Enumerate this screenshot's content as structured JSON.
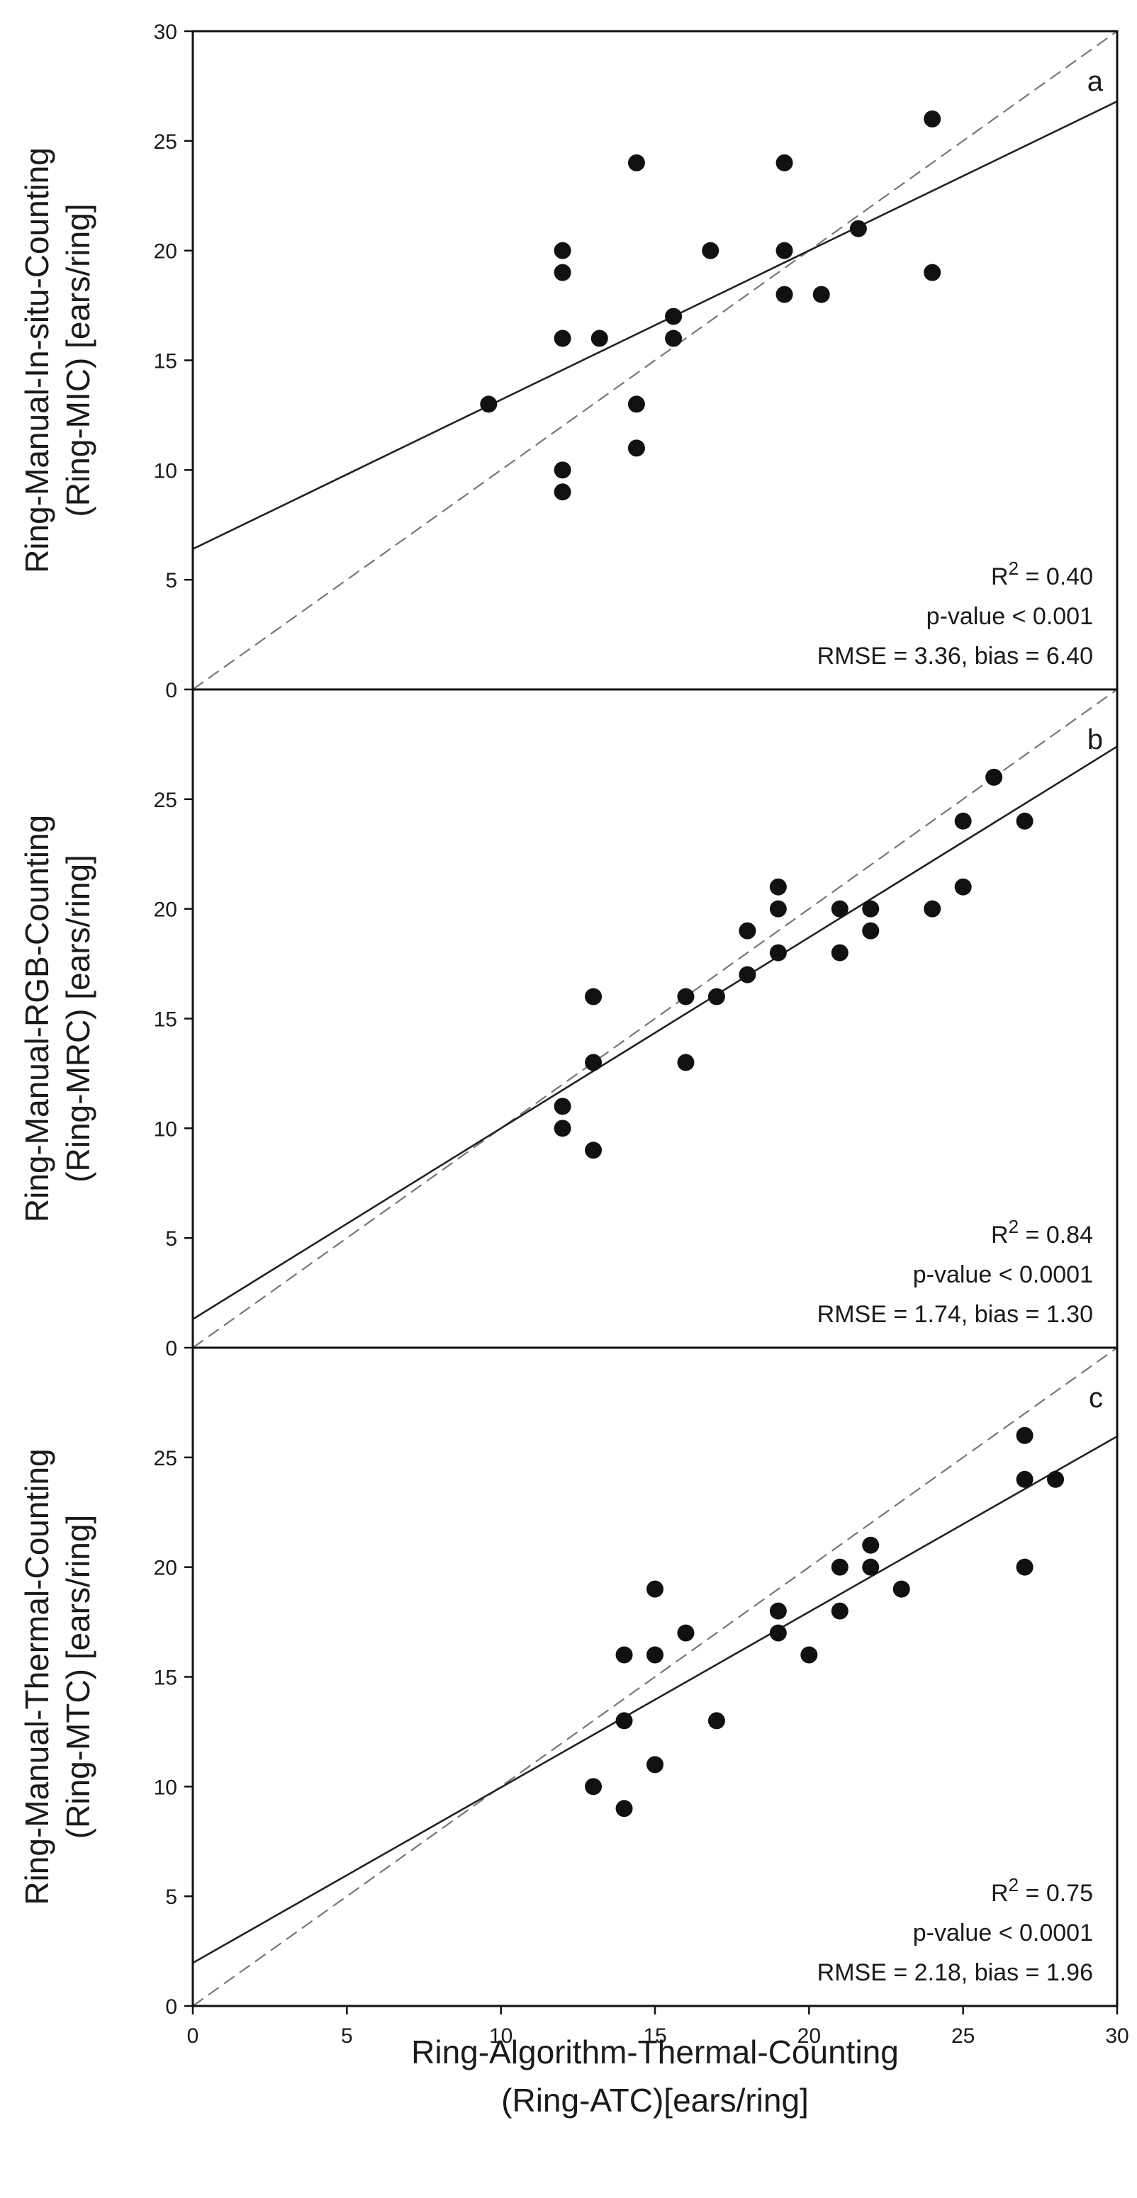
{
  "chart_data": [
    {
      "type": "scatter",
      "panel_label": "a",
      "ylabel_lines": [
        "Ring-Manual-In-situ-Counting",
        "(Ring-MIC) [ears/ring]"
      ],
      "xlim": [
        0,
        30
      ],
      "ylim": [
        0,
        30
      ],
      "yticks": [
        0,
        5,
        10,
        15,
        20,
        25,
        30
      ],
      "points": [
        [
          9.6,
          13
        ],
        [
          12,
          20
        ],
        [
          12,
          19
        ],
        [
          12,
          16
        ],
        [
          12,
          10
        ],
        [
          12,
          9
        ],
        [
          13.2,
          16
        ],
        [
          14.4,
          24
        ],
        [
          14.4,
          13
        ],
        [
          14.4,
          11
        ],
        [
          15.6,
          17
        ],
        [
          15.6,
          16
        ],
        [
          16.8,
          20
        ],
        [
          19.2,
          24
        ],
        [
          19.2,
          20
        ],
        [
          19.2,
          18
        ],
        [
          20.4,
          18
        ],
        [
          21.6,
          21
        ],
        [
          24,
          26
        ],
        [
          24,
          19
        ]
      ],
      "regression_line": {
        "intercept": 6.4,
        "slope": 0.68
      },
      "identity_line": true,
      "stats": {
        "r2_label": "R",
        "r2_exp": "2",
        "r2_value": " = 0.40",
        "p_value": "p-value < 0.001",
        "rmse_bias": "RMSE = 3.36, bias = 6.40"
      }
    },
    {
      "type": "scatter",
      "panel_label": "b",
      "ylabel_lines": [
        "Ring-Manual-RGB-Counting",
        "(Ring-MRC) [ears/ring]"
      ],
      "xlim": [
        0,
        30
      ],
      "ylim": [
        0,
        30
      ],
      "yticks": [
        0,
        5,
        10,
        15,
        20,
        25
      ],
      "points": [
        [
          12,
          11
        ],
        [
          12,
          10
        ],
        [
          13,
          16
        ],
        [
          13,
          13
        ],
        [
          13,
          9
        ],
        [
          16,
          16
        ],
        [
          16,
          13
        ],
        [
          17,
          16
        ],
        [
          18,
          19
        ],
        [
          18,
          17
        ],
        [
          19,
          21
        ],
        [
          19,
          20
        ],
        [
          19,
          18
        ],
        [
          21,
          20
        ],
        [
          21,
          18
        ],
        [
          22,
          20
        ],
        [
          22,
          19
        ],
        [
          24,
          20
        ],
        [
          25,
          24
        ],
        [
          25,
          21
        ],
        [
          26,
          26
        ],
        [
          27,
          24
        ]
      ],
      "regression_line": {
        "intercept": 1.3,
        "slope": 0.87
      },
      "identity_line": true,
      "stats": {
        "r2_label": "R",
        "r2_exp": "2",
        "r2_value": " = 0.84",
        "p_value": "p-value < 0.0001",
        "rmse_bias": "RMSE = 1.74, bias = 1.30"
      }
    },
    {
      "type": "scatter",
      "panel_label": "c",
      "ylabel_lines": [
        "Ring-Manual-Thermal-Counting",
        "(Ring-MTC) [ears/ring]"
      ],
      "xlim": [
        0,
        30
      ],
      "ylim": [
        0,
        30
      ],
      "yticks": [
        0,
        5,
        10,
        15,
        20,
        25
      ],
      "xticks": [
        0,
        5,
        10,
        15,
        20,
        25,
        30
      ],
      "points": [
        [
          13,
          10
        ],
        [
          14,
          16
        ],
        [
          14,
          13
        ],
        [
          14,
          9
        ],
        [
          15,
          19
        ],
        [
          15,
          16
        ],
        [
          15,
          11
        ],
        [
          16,
          17
        ],
        [
          17,
          13
        ],
        [
          19,
          18
        ],
        [
          19,
          17
        ],
        [
          20,
          16
        ],
        [
          21,
          20
        ],
        [
          21,
          18
        ],
        [
          22,
          21
        ],
        [
          22,
          20
        ],
        [
          23,
          19
        ],
        [
          27,
          26
        ],
        [
          27,
          24
        ],
        [
          27,
          20
        ],
        [
          28,
          24
        ]
      ],
      "regression_line": {
        "intercept": 1.96,
        "slope": 0.8
      },
      "identity_line": true,
      "stats": {
        "r2_label": "R",
        "r2_exp": "2",
        "r2_value": " = 0.75",
        "p_value": "p-value < 0.0001",
        "rmse_bias": "RMSE = 2.18, bias = 1.96"
      }
    }
  ],
  "xlabel_lines": [
    "Ring-Algorithm-Thermal-Counting",
    "(Ring-ATC)[ears/ring]"
  ],
  "colors": {
    "point": "#111111",
    "axis": "#111111",
    "regression": "#222222",
    "identity": "#777777"
  }
}
